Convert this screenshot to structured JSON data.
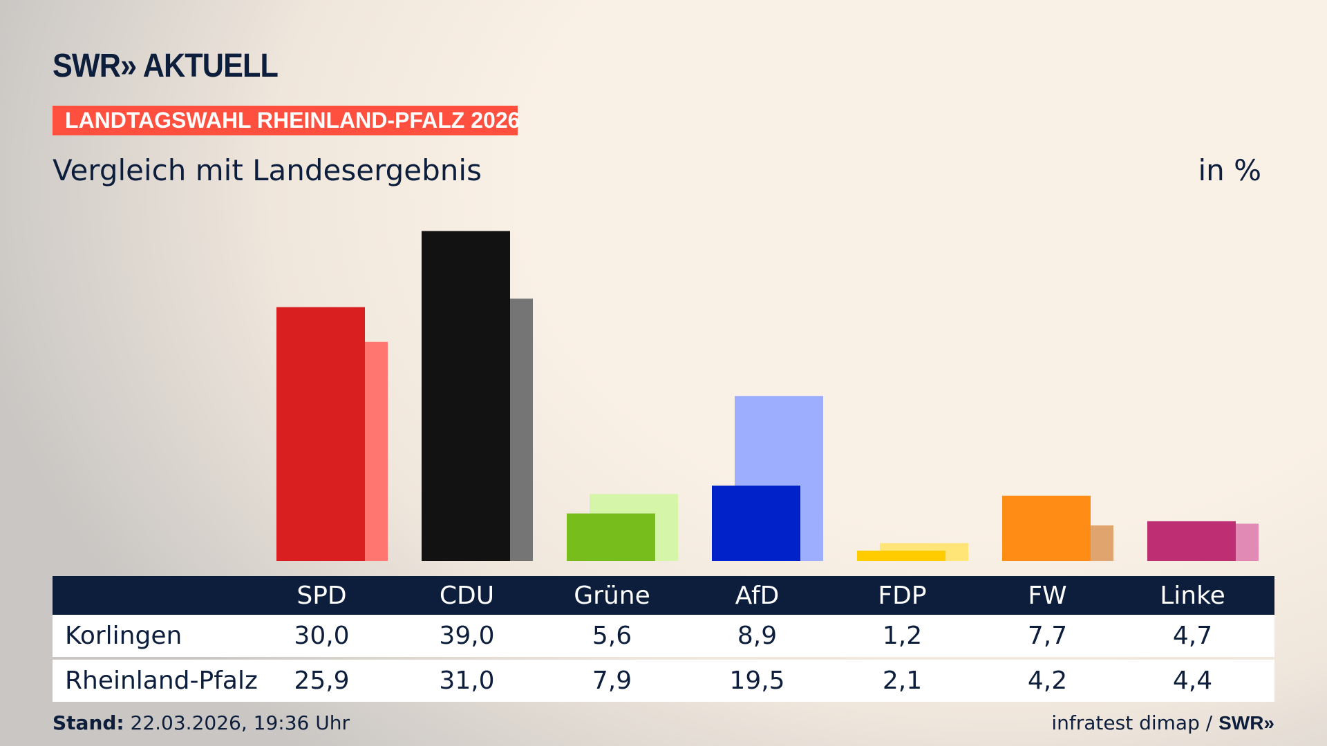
{
  "header": {
    "logo": "SWR» AKTUELL",
    "badge": "LANDTAGSWAHL RHEINLAND-PFALZ 2026",
    "subtitle": "Vergleich mit Landesergebnis",
    "unit": "in %"
  },
  "chart_data": {
    "type": "bar",
    "categories": [
      "SPD",
      "CDU",
      "Grüne",
      "AfD",
      "FDP",
      "FW",
      "Linke"
    ],
    "series": [
      {
        "name": "Korlingen",
        "values": [
          30.0,
          39.0,
          5.6,
          8.9,
          1.2,
          7.7,
          4.7
        ],
        "colors": [
          "#d91f1f",
          "#121212",
          "#77bd1c",
          "#0022c8",
          "#ffcc00",
          "#ff8c14",
          "#be2e73"
        ]
      },
      {
        "name": "Rheinland-Pfalz",
        "values": [
          25.9,
          31.0,
          7.9,
          19.5,
          2.1,
          4.2,
          4.4
        ],
        "colors": [
          "#ff7670",
          "#757575",
          "#d5f5a8",
          "#9daeff",
          "#ffe477",
          "#e0a46f",
          "#e08ab5"
        ]
      }
    ],
    "ylim": [
      0,
      40
    ]
  },
  "table": {
    "headers": [
      "SPD",
      "CDU",
      "Grüne",
      "AfD",
      "FDP",
      "FW",
      "Linke"
    ],
    "rows": [
      {
        "label": "Korlingen",
        "values": [
          "30,0",
          "39,0",
          "5,6",
          "8,9",
          "1,2",
          "7,7",
          "4,7"
        ]
      },
      {
        "label": "Rheinland-Pfalz",
        "values": [
          "25,9",
          "31,0",
          "7,9",
          "19,5",
          "2,1",
          "4,2",
          "4,4"
        ]
      }
    ]
  },
  "footer": {
    "stand_label": "Stand:",
    "stand_value": " 22.03.2026, 19:36 Uhr",
    "source": "infratest dimap / ",
    "source_logo": "SWR»"
  }
}
